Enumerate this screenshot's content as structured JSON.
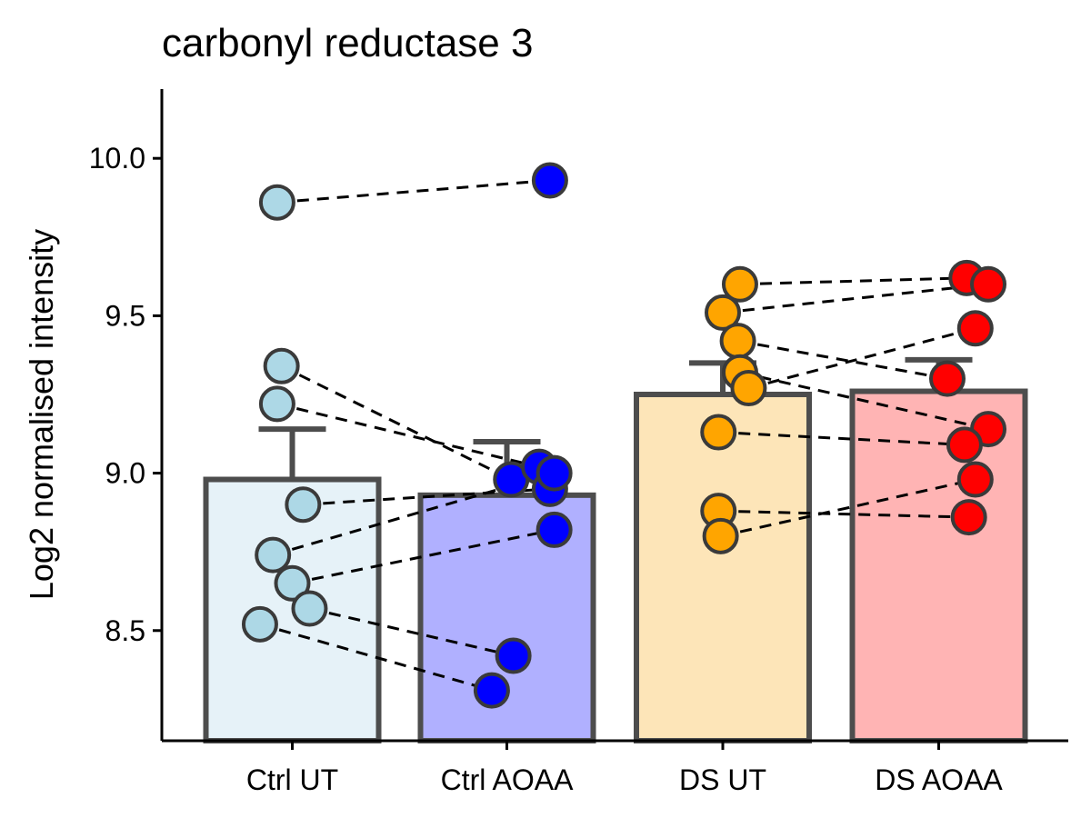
{
  "chart_data": {
    "type": "bar",
    "title": "carbonyl reductase 3",
    "xlabel": "",
    "ylabel": "Log2 normalised intensity",
    "ylim": [
      8.15,
      10.22
    ],
    "yticks": [
      8.5,
      9.0,
      9.5,
      10.0
    ],
    "ytick_labels": [
      "8.5",
      "9.0",
      "9.5",
      "10.0"
    ],
    "grid": false,
    "legend": "none",
    "categories": [
      "Ctrl UT",
      "Ctrl AOAA",
      "DS UT",
      "DS AOAA"
    ],
    "values": [
      8.98,
      8.93,
      9.25,
      9.26
    ],
    "error_upper": [
      9.14,
      9.1,
      9.35,
      9.36
    ],
    "bar_fill_colors": [
      "#e6f2f8",
      "#b0b0ff",
      "#fde5b8",
      "#ffb4b4"
    ],
    "point_colors": [
      "#add8e6",
      "#0000ff",
      "#ffa500",
      "#ff0000"
    ],
    "bar_edge_color": "#4d4d4d",
    "points": [
      {
        "x": [
          -0.07,
          0.2
        ],
        "y": [
          9.86,
          9.93
        ]
      },
      {
        "x": [
          -0.05,
          0.02
        ],
        "y": [
          9.34,
          8.98
        ]
      },
      {
        "x": [
          -0.07,
          0.15
        ],
        "y": [
          9.22,
          9.02
        ]
      },
      {
        "x": [
          0.05,
          0.2
        ],
        "y": [
          8.9,
          8.95
        ]
      },
      {
        "x": [
          -0.09,
          0.22
        ],
        "y": [
          8.74,
          9.0
        ]
      },
      {
        "x": [
          0.0,
          0.22
        ],
        "y": [
          8.65,
          8.82
        ]
      },
      {
        "x": [
          0.08,
          0.03
        ],
        "y": [
          8.57,
          8.42
        ]
      },
      {
        "x": [
          -0.15,
          -0.07
        ],
        "y": [
          8.52,
          8.31
        ]
      },
      {
        "x": [
          1.08,
          1.13
        ],
        "y": [
          9.6,
          9.62
        ]
      },
      {
        "x": [
          1.0,
          1.23
        ],
        "y": [
          9.51,
          9.6
        ]
      },
      {
        "x": [
          1.07,
          1.04
        ],
        "y": [
          9.42,
          9.3
        ]
      },
      {
        "x": [
          1.08,
          1.23
        ],
        "y": [
          9.32,
          9.14
        ]
      },
      {
        "x": [
          1.12,
          1.17
        ],
        "y": [
          9.27,
          9.46
        ]
      },
      {
        "x": [
          0.98,
          1.12
        ],
        "y": [
          9.13,
          9.09
        ]
      },
      {
        "x": [
          0.98,
          1.14
        ],
        "y": [
          8.88,
          8.86
        ]
      },
      {
        "x": [
          0.99,
          1.17
        ],
        "y": [
          8.8,
          8.98
        ]
      }
    ]
  }
}
